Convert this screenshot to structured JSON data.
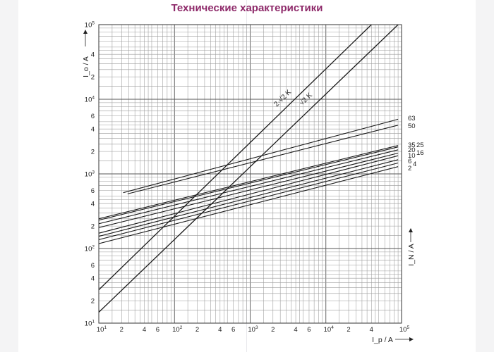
{
  "page": {
    "title": "Технические характеристики"
  },
  "chart_data": {
    "type": "line",
    "title": "",
    "xlabel": "I_p / A",
    "ylabel": "I_o / A",
    "ylabel_right": "I_N / A",
    "x_scale": "log",
    "y_scale": "log",
    "xlim": [
      10,
      100000
    ],
    "ylim": [
      10,
      100000
    ],
    "grid": true,
    "x_ticks": [
      {
        "base": "10",
        "exp": "1",
        "value": 10
      },
      {
        "label": "2",
        "value": 20
      },
      {
        "label": "4",
        "value": 40
      },
      {
        "label": "6",
        "value": 60
      },
      {
        "base": "10",
        "exp": "2",
        "value": 100
      },
      {
        "label": "2",
        "value": 200
      },
      {
        "label": "4",
        "value": 400
      },
      {
        "label": "6",
        "value": 600
      },
      {
        "base": "10",
        "exp": "3",
        "value": 1000
      },
      {
        "label": "2",
        "value": 2000
      },
      {
        "label": "4",
        "value": 4000
      },
      {
        "label": "6",
        "value": 6000
      },
      {
        "base": "10",
        "exp": "4",
        "value": 10000
      },
      {
        "label": "2",
        "value": 20000
      },
      {
        "label": "4",
        "value": 40000
      },
      {
        "base": "10",
        "exp": "5",
        "value": 100000
      }
    ],
    "y_ticks": [
      {
        "base": "10",
        "exp": "1",
        "value": 10
      },
      {
        "label": "2",
        "value": 20
      },
      {
        "label": "4",
        "value": 40
      },
      {
        "label": "6",
        "value": 60
      },
      {
        "base": "10",
        "exp": "2",
        "value": 100
      },
      {
        "label": "2",
        "value": 200
      },
      {
        "label": "4",
        "value": 400
      },
      {
        "label": "6",
        "value": 600
      },
      {
        "base": "10",
        "exp": "3",
        "value": 1000
      },
      {
        "label": "2",
        "value": 2000
      },
      {
        "label": "4",
        "value": 4000
      },
      {
        "label": "6",
        "value": 6000
      },
      {
        "base": "10",
        "exp": "4",
        "value": 10000
      },
      {
        "label": "2",
        "value": 20000
      },
      {
        "label": "4",
        "value": 40000
      },
      {
        "base": "10",
        "exp": "5",
        "value": 100000
      }
    ],
    "limit_lines": [
      {
        "label": "2·√2 K",
        "points": [
          [
            10,
            28
          ],
          [
            40000,
            100000
          ]
        ]
      },
      {
        "label": "√2 K",
        "points": [
          [
            10,
            14
          ],
          [
            90000,
            100000
          ]
        ]
      }
    ],
    "series": [
      {
        "name": "63",
        "points": [
          [
            21,
            560
          ],
          [
            90000,
            5400
          ]
        ]
      },
      {
        "name": "50",
        "points": [
          [
            24,
            540
          ],
          [
            90000,
            4500
          ]
        ]
      },
      {
        "name": "35",
        "points": [
          [
            7,
            230
          ],
          [
            90000,
            2400
          ]
        ]
      },
      {
        "name": "25",
        "points": [
          [
            7,
            220
          ],
          [
            90000,
            2300
          ]
        ]
      },
      {
        "name": "20",
        "points": [
          [
            5.5,
            185
          ],
          [
            90000,
            2100
          ]
        ]
      },
      {
        "name": "16",
        "points": [
          [
            5,
            160
          ],
          [
            90000,
            1900
          ]
        ]
      },
      {
        "name": "10",
        "points": [
          [
            4.5,
            130
          ],
          [
            90000,
            1750
          ]
        ]
      },
      {
        "name": "6",
        "points": [
          [
            4,
            115
          ],
          [
            90000,
            1550
          ]
        ]
      },
      {
        "name": "4",
        "points": [
          [
            3.5,
            100
          ],
          [
            90000,
            1400
          ]
        ]
      },
      {
        "name": "2",
        "points": [
          [
            3,
            85
          ],
          [
            90000,
            1250
          ]
        ]
      }
    ]
  }
}
